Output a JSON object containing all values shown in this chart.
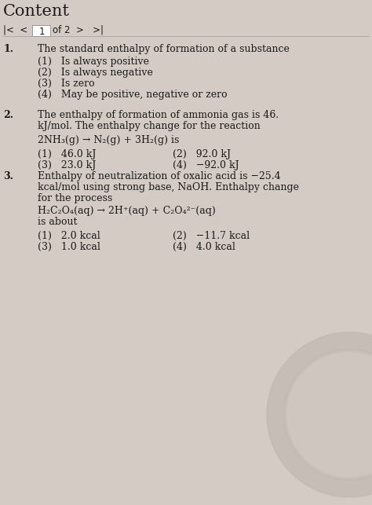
{
  "bg_color": "#d4ccc4",
  "title": "Content",
  "q1_num": "1.",
  "q1_text": "The standard enthalpy of formation of a substance",
  "q1_opts": [
    "(1)   Is always positive",
    "(2)   Is always negative",
    "(3)   Is zero",
    "(4)   May be positive, negative or zero"
  ],
  "q2_num": "2.",
  "q2_text1": "The enthalpy of formation of ammonia gas is 46.",
  "q2_text2": "kJ/mol. The enthalpy change for the reaction",
  "q2_reaction": "2NH₃(g) → N₂(g) + 3H₂(g) is",
  "q2_opts_left": [
    "(1)   46.0 kJ",
    "(3)   23.0 kJ"
  ],
  "q2_opts_right": [
    "(2)   92.0 kJ",
    "(4)   −92.0 kJ"
  ],
  "q3_num": "3.",
  "q3_text1": "Enthalpy of neutralization of oxalic acid is −25.4",
  "q3_text2": "kcal/mol using strong base, NaOH. Enthalpy change",
  "q3_text3": "for the process",
  "q3_reaction1": "H₂C₂O₄(aq) → 2H⁺(aq) + C₂O₄²⁻(aq)",
  "q3_reaction2": "is about",
  "q3_opts_left": [
    "(1)   2.0 kcal",
    "(3)   1.0 kcal"
  ],
  "q3_opts_right": [
    "(2)   −11.7 kcal",
    "(4)   4.0 kcal"
  ],
  "font_size_title": 15,
  "font_size_nav": 8.5,
  "font_size_text": 9,
  "text_color": "#1a1a1a",
  "watermark_color": "#bbb4ac"
}
